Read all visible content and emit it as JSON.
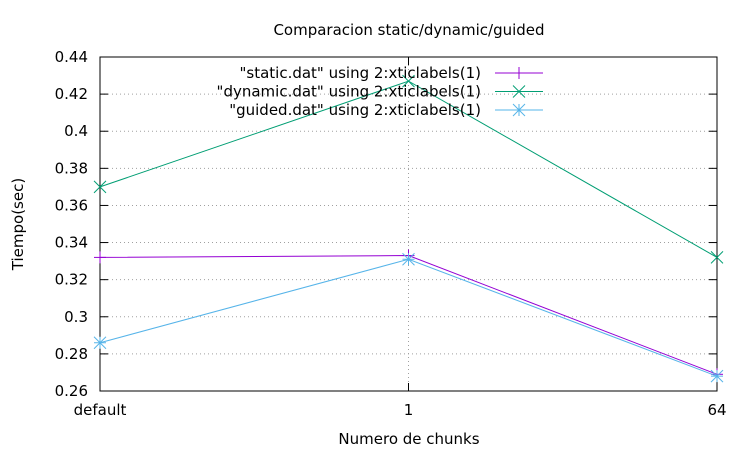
{
  "chart_data": {
    "type": "line",
    "title": "Comparacion static/dynamic/guided",
    "xlabel": "Numero de chunks",
    "ylabel": "Tiempo(sec)",
    "categories": [
      "default",
      "1",
      "64"
    ],
    "ylim": [
      0.26,
      0.44
    ],
    "yticks": [
      "0.26",
      "0.28",
      "0.3",
      "0.32",
      "0.34",
      "0.36",
      "0.38",
      "0.4",
      "0.42",
      "0.44"
    ],
    "grid": true,
    "legend_position": "top-right",
    "series": [
      {
        "name": "\"static.dat\" using 2:xticlabels(1)",
        "values": [
          0.332,
          0.333,
          0.269
        ],
        "color": "#9400d3",
        "marker": "plus"
      },
      {
        "name": "\"dynamic.dat\" using 2:xticlabels(1)",
        "values": [
          0.37,
          0.427,
          0.332
        ],
        "color": "#009e73",
        "marker": "cross"
      },
      {
        "name": "\"guided.dat\" using 2:xticlabels(1)",
        "values": [
          0.286,
          0.331,
          0.268
        ],
        "color": "#56b4e9",
        "marker": "star"
      }
    ]
  }
}
